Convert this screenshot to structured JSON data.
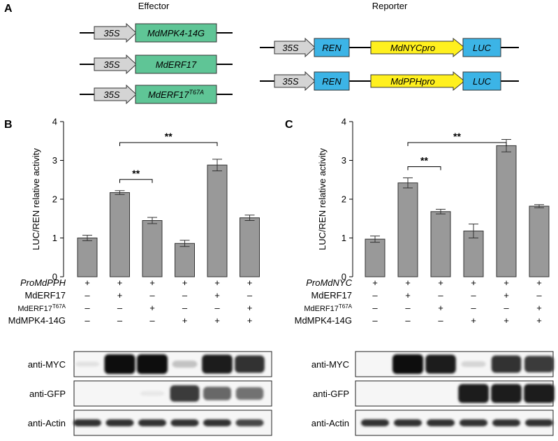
{
  "panel_labels": {
    "a": "A",
    "b": "B",
    "c": "C"
  },
  "constructs": {
    "effector_title": "Effector",
    "reporter_title": "Reporter",
    "promoter": "35S",
    "effectors": [
      {
        "gene": "MdMPK4-14G"
      },
      {
        "gene": "MdERF17"
      },
      {
        "gene": "MdERF17",
        "superscript": "T67A"
      }
    ],
    "reporters": [
      {
        "ren": "REN",
        "promoter": "MdNYCpro",
        "luc": "LUC"
      },
      {
        "ren": "REN",
        "promoter": "MdPPHpro",
        "luc": "LUC"
      }
    ],
    "colors": {
      "effector_box": "#5fc596",
      "promoter_box": "#fff01e",
      "reporter_box": "#3cb4e6",
      "arrow_fill": "#d4d4d4"
    }
  },
  "chart_data": [
    {
      "panel": "B",
      "type": "bar",
      "ylabel": "LUC/REN relative activity",
      "ylim": [
        0,
        4
      ],
      "yticks": [
        "0",
        "1",
        "2",
        "3",
        "4"
      ],
      "values": [
        1.0,
        2.17,
        1.45,
        0.86,
        2.88,
        1.52
      ],
      "errors": [
        0.07,
        0.05,
        0.08,
        0.08,
        0.15,
        0.07
      ],
      "bar_color": "#999999",
      "significance": [
        {
          "from": 2,
          "to": 3,
          "label": "**"
        },
        {
          "from": 2,
          "to": 5,
          "label": "**"
        }
      ],
      "treatments": [
        {
          "label": "ProMdPPH",
          "italic": true,
          "signs": [
            "+",
            "+",
            "+",
            "+",
            "+",
            "+"
          ]
        },
        {
          "label": "MdERF17",
          "italic": false,
          "signs": [
            "–",
            "+",
            "–",
            "–",
            "+",
            "–"
          ]
        },
        {
          "label": "MdERF17",
          "superscript": "T67A",
          "italic": false,
          "signs": [
            "–",
            "–",
            "+",
            "–",
            "–",
            "+"
          ]
        },
        {
          "label": "MdMPK4-14G",
          "italic": false,
          "signs": [
            "–",
            "–",
            "–",
            "+",
            "+",
            "+"
          ]
        }
      ],
      "blots": [
        {
          "label": "anti-MYC",
          "intensities": [
            0.04,
            1.0,
            1.0,
            0.18,
            0.95,
            0.85
          ]
        },
        {
          "label": "anti-GFP",
          "intensities": [
            0.0,
            0.0,
            0.02,
            0.8,
            0.6,
            0.55
          ]
        },
        {
          "label": "anti-Actin",
          "intensities": [
            0.85,
            0.85,
            0.85,
            0.85,
            0.85,
            0.75
          ]
        }
      ]
    },
    {
      "panel": "C",
      "type": "bar",
      "ylabel": "LUC/REN relative activity",
      "ylim": [
        0,
        4
      ],
      "yticks": [
        "0",
        "1",
        "2",
        "3",
        "4"
      ],
      "values": [
        0.97,
        2.42,
        1.68,
        1.18,
        3.38,
        1.82
      ],
      "errors": [
        0.08,
        0.13,
        0.06,
        0.18,
        0.16,
        0.04
      ],
      "bar_color": "#999999",
      "significance": [
        {
          "from": 2,
          "to": 3,
          "label": "**"
        },
        {
          "from": 2,
          "to": 5,
          "label": "**"
        }
      ],
      "treatments": [
        {
          "label": "ProMdNYC",
          "italic": true,
          "signs": [
            "+",
            "+",
            "+",
            "+",
            "+",
            "+"
          ]
        },
        {
          "label": "MdERF17",
          "italic": false,
          "signs": [
            "–",
            "+",
            "–",
            "–",
            "+",
            "–"
          ]
        },
        {
          "label": "MdERF17",
          "superscript": "T67A",
          "italic": false,
          "signs": [
            "–",
            "–",
            "+",
            "–",
            "–",
            "+"
          ]
        },
        {
          "label": "MdMPK4-14G",
          "italic": false,
          "signs": [
            "–",
            "–",
            "–",
            "+",
            "+",
            "+"
          ]
        }
      ],
      "blots": [
        {
          "label": "anti-MYC",
          "intensities": [
            0.0,
            1.0,
            0.95,
            0.1,
            0.85,
            0.8
          ]
        },
        {
          "label": "anti-GFP",
          "intensities": [
            0.0,
            0.0,
            0.0,
            0.95,
            0.95,
            0.95
          ]
        },
        {
          "label": "anti-Actin",
          "intensities": [
            0.85,
            0.85,
            0.85,
            0.85,
            0.85,
            0.85
          ]
        }
      ]
    }
  ]
}
